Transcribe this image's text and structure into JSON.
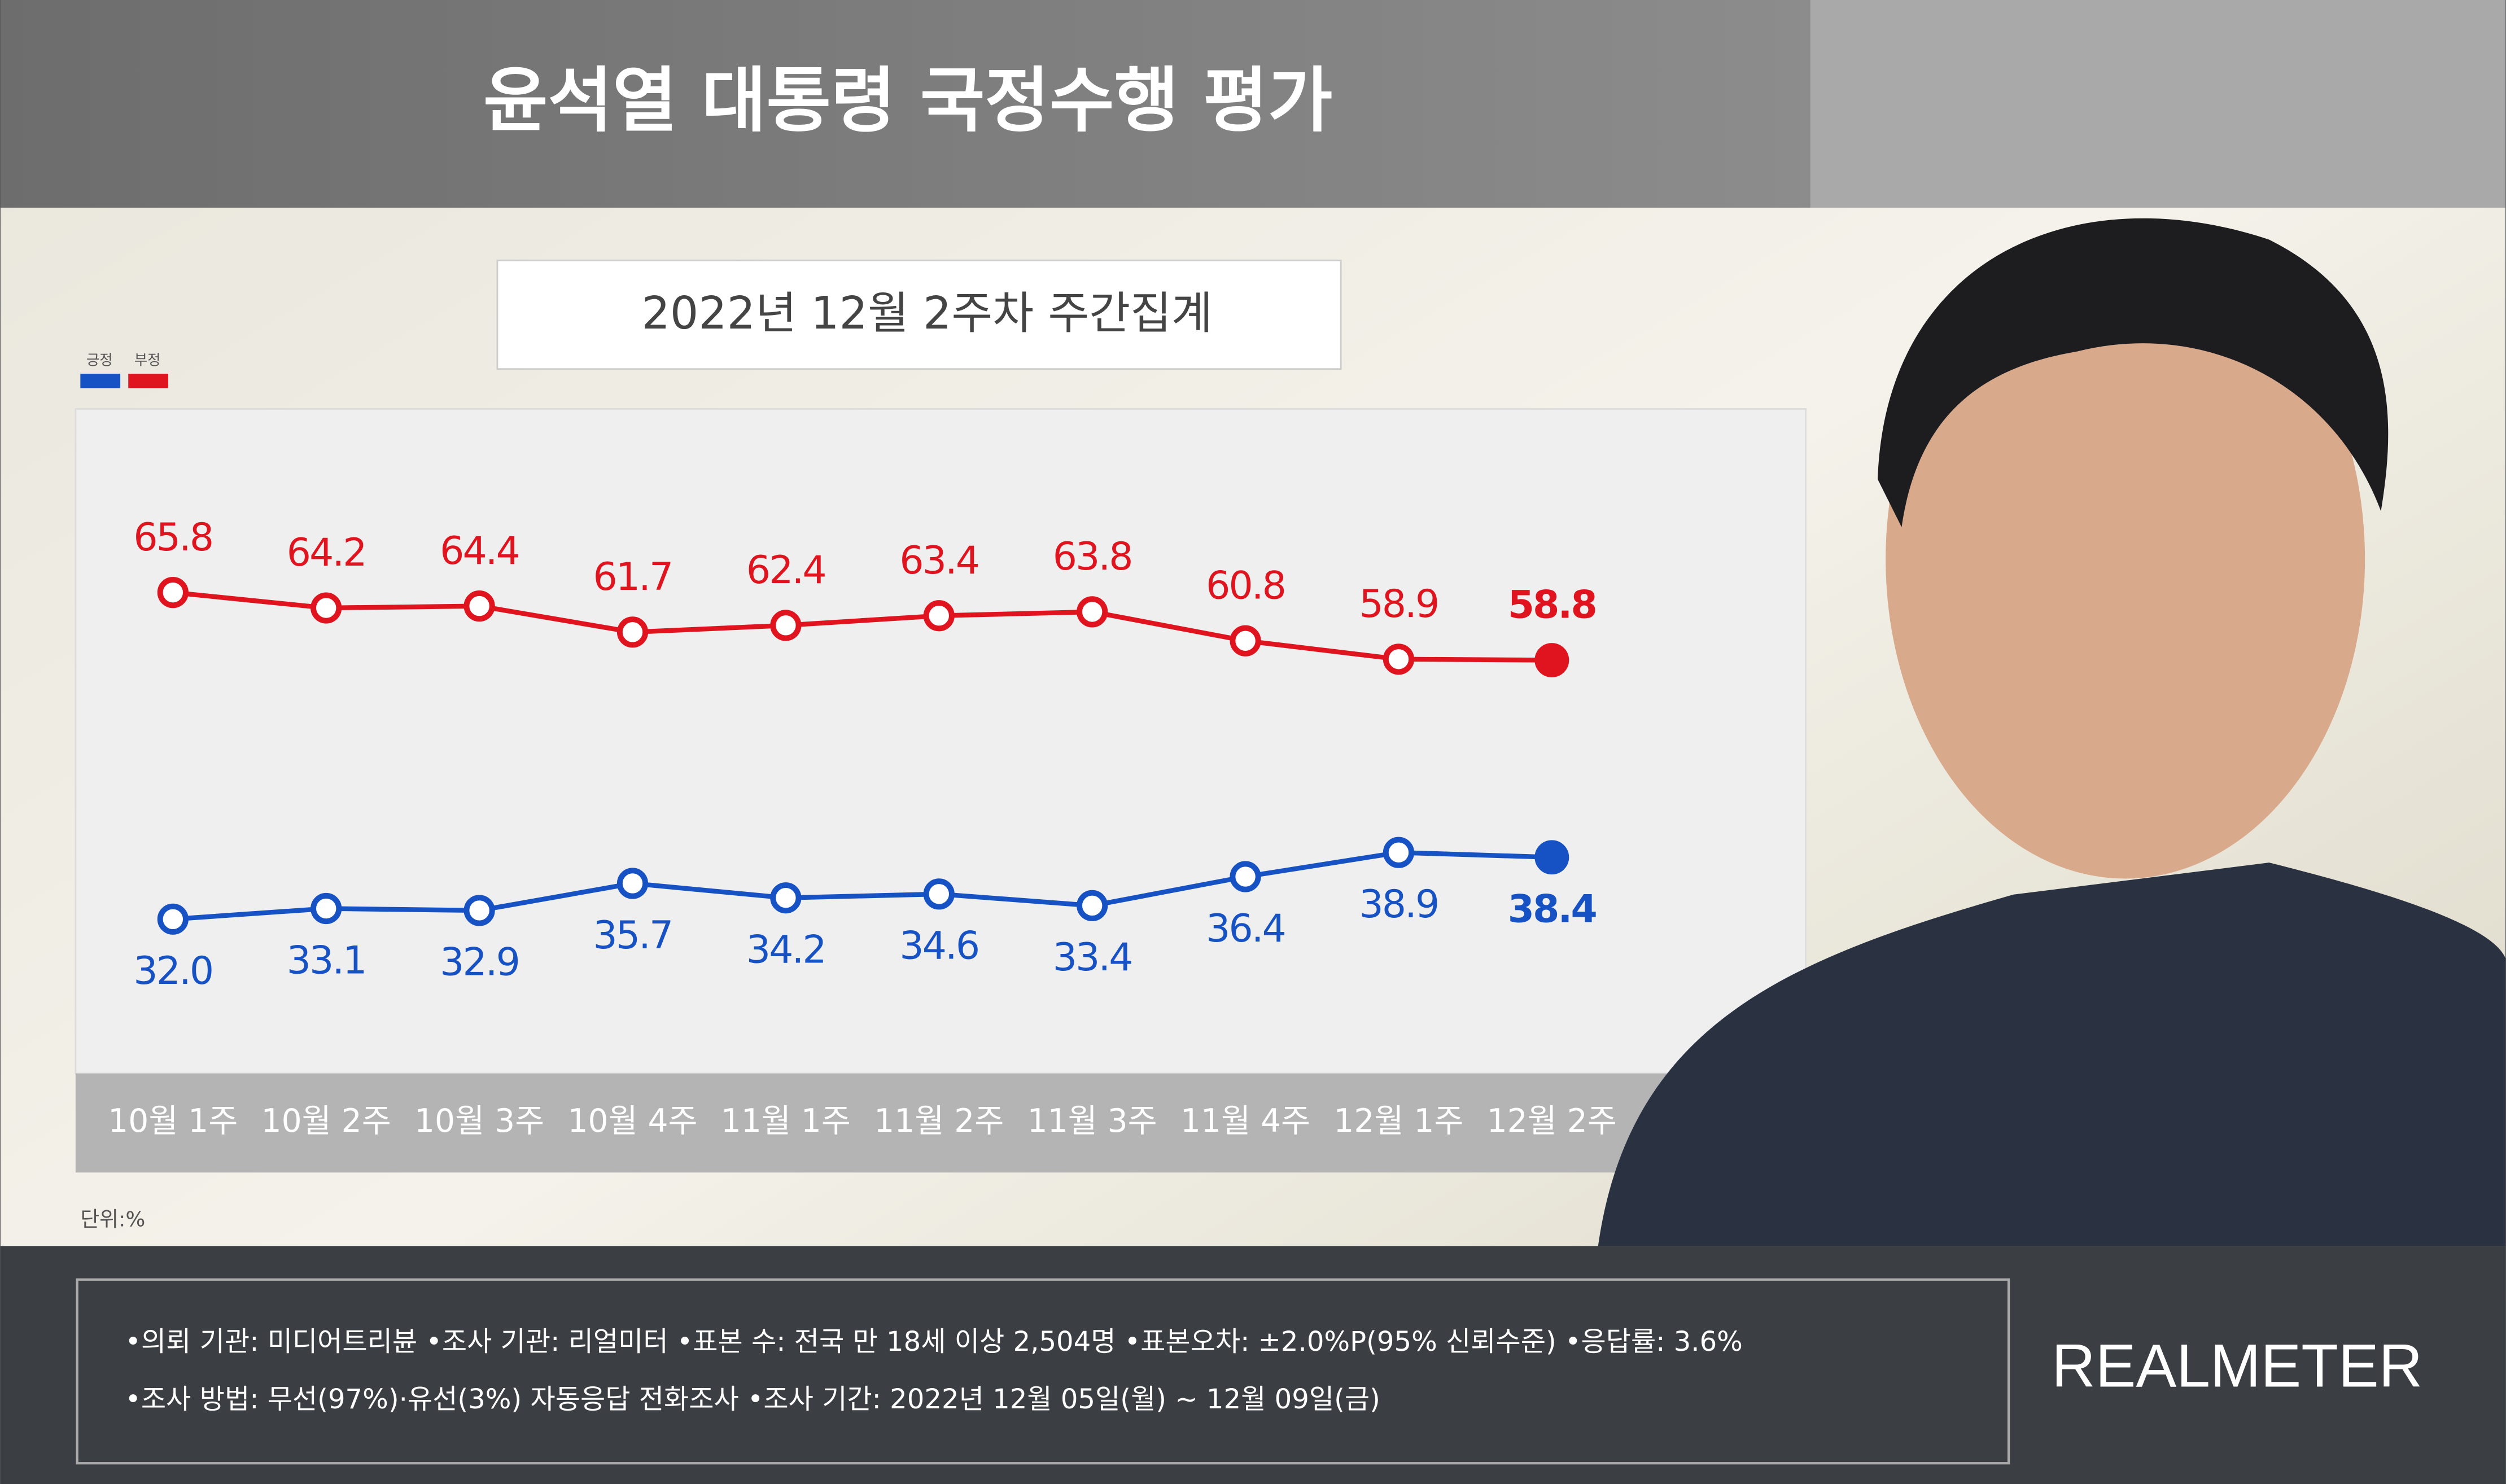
{
  "chart_data": {
    "type": "line",
    "title": "윤석열 대통령 국정수행 평가",
    "subtitle": "2022년 12월 2주차 주간집계",
    "unit_label": "단위:%",
    "categories": [
      "10월 1주",
      "10월 2주",
      "10월 3주",
      "10월 4주",
      "11월 1주",
      "11월 2주",
      "11월 3주",
      "11월 4주",
      "12월 1주",
      "12월 2주"
    ],
    "series": [
      {
        "name": "긍정",
        "color": "#1652c4",
        "values": [
          32.0,
          33.1,
          32.9,
          35.7,
          34.2,
          34.6,
          33.4,
          36.4,
          38.9,
          38.4
        ],
        "value_labels": [
          "32.0",
          "33.1",
          "32.9",
          "35.7",
          "34.2",
          "34.6",
          "33.4",
          "36.4",
          "38.9",
          "38.4"
        ]
      },
      {
        "name": "부정",
        "color": "#e0141e",
        "values": [
          65.8,
          64.2,
          64.4,
          61.7,
          62.4,
          63.4,
          63.8,
          60.8,
          58.9,
          58.8
        ]
      }
    ],
    "ylim": [
      20,
      80
    ],
    "legend": "top-left",
    "notes": [
      "•의뢰 기관: 미디어트리뷴 •조사 기관: 리얼미터 •표본 수: 전국 만 18세 이상 2,504명 •표본오차: ±2.0%P(95% 신뢰수준) •응답률: 3.6%",
      "•조사 방법: 무선(97%)·유선(3%) 자동응답 전화조사 •조사 기간: 2022년 12월 05일(월) ~ 12월 09일(금)"
    ],
    "brand": "REALMETER"
  }
}
